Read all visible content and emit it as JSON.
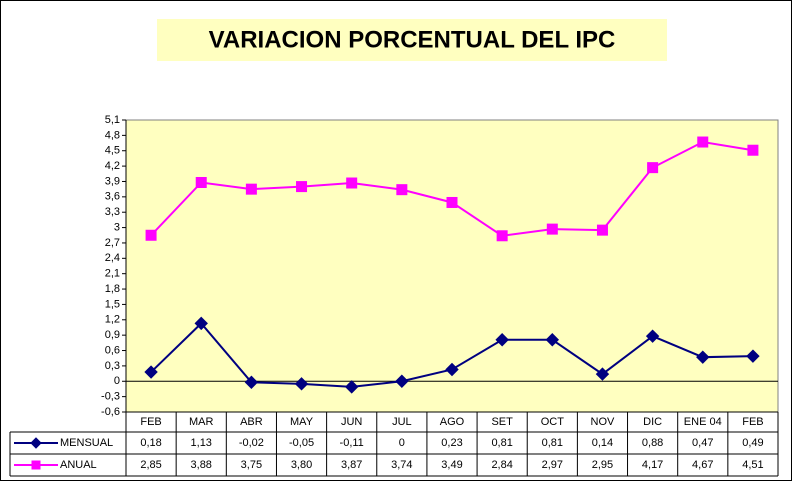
{
  "chart_data": {
    "type": "line",
    "title": "VARIACION  PORCENTUAL DEL IPC",
    "categories": [
      "FEB",
      "MAR",
      "ABR",
      "MAY",
      "JUN",
      "JUL",
      "AGO",
      "SET",
      "OCT",
      "NOV",
      "DIC",
      "ENE 04",
      "FEB"
    ],
    "series": [
      {
        "name": "MENSUAL",
        "color": "#000080",
        "marker": "diamond",
        "values": [
          0.18,
          1.13,
          -0.02,
          -0.05,
          -0.11,
          0,
          0.23,
          0.81,
          0.81,
          0.14,
          0.88,
          0.47,
          0.49
        ],
        "value_labels": [
          "0,18",
          "1,13",
          "-0,02",
          "-0,05",
          "-0,11",
          "0",
          "0,23",
          "0,81",
          "0,81",
          "0,14",
          "0,88",
          "0,47",
          "0,49"
        ]
      },
      {
        "name": "ANUAL",
        "color": "#ff00ff",
        "marker": "square",
        "values": [
          2.85,
          3.88,
          3.75,
          3.8,
          3.87,
          3.74,
          3.49,
          2.84,
          2.97,
          2.95,
          4.17,
          4.67,
          4.51
        ],
        "value_labels": [
          "2,85",
          "3,88",
          "3,75",
          "3,80",
          "3,87",
          "3,74",
          "3,49",
          "2,84",
          "2,97",
          "2,95",
          "4,17",
          "4,67",
          "4,51"
        ]
      }
    ],
    "ylim": [
      -0.6,
      5.1
    ],
    "yticks": [
      {
        "value": 5.1,
        "label": "5,1"
      },
      {
        "value": 4.8,
        "label": "4,8"
      },
      {
        "value": 4.5,
        "label": "4,5"
      },
      {
        "value": 4.2,
        "label": "4,2"
      },
      {
        "value": 3.9,
        "label": "3,9"
      },
      {
        "value": 3.6,
        "label": "3,6"
      },
      {
        "value": 3.3,
        "label": "3,3"
      },
      3,
      {
        "value": 2.7,
        "label": "2,7"
      },
      {
        "value": 2.4,
        "label": "2,4"
      },
      {
        "value": 2.1,
        "label": "2,1"
      },
      {
        "value": 1.8,
        "label": "1,8"
      },
      {
        "value": 1.5,
        "label": "1,5"
      },
      {
        "value": 1.2,
        "label": "1,2"
      },
      {
        "value": 0.9,
        "label": "0,9"
      },
      {
        "value": 0.6,
        "label": "0,6"
      },
      {
        "value": 0.3,
        "label": "0,3"
      },
      0,
      {
        "value": -0.3,
        "label": "-0,3"
      },
      {
        "value": -0.6,
        "label": "-0,6"
      }
    ],
    "plot_background": "#ffffc0",
    "data_table": true
  }
}
